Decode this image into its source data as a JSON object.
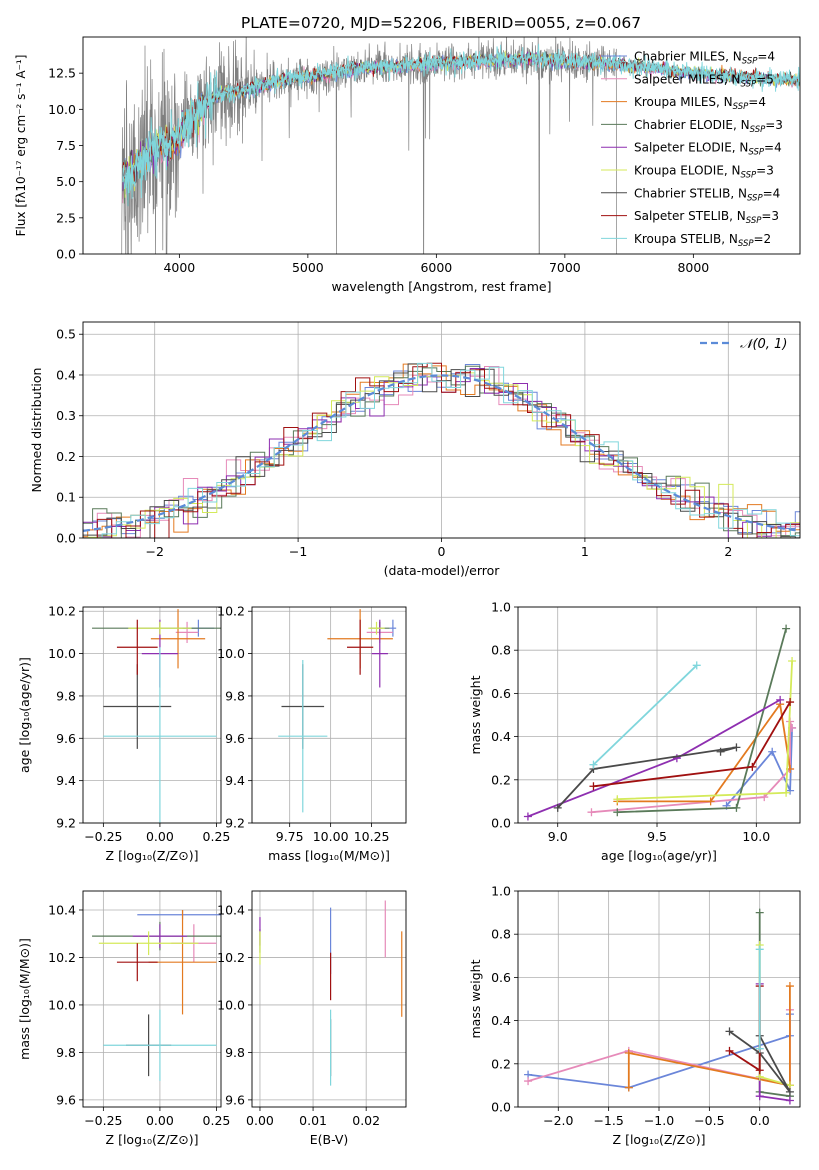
{
  "title": "PLATE=0720, MJD=52206, FIBERID=0055, z=0.067",
  "colors": {
    "chabrier_miles": "#6b86d9",
    "salpeter_miles": "#e68ab9",
    "kroupa_miles": "#e37a20",
    "chabrier_elodie": "#5a7a5a",
    "salpeter_elodie": "#8e2fb0",
    "kroupa_elodie": "#d4ea5a",
    "chabrier_stelib": "#4a4a4a",
    "salpeter_stelib": "#a01010",
    "kroupa_stelib": "#80d6dc",
    "data_gray": "#808080",
    "normal_curve": "#5b8bd8"
  },
  "chart_data": [
    {
      "id": "spectrum",
      "type": "line",
      "title": "PLATE=0720, MJD=52206, FIBERID=0055, z=0.067",
      "xlabel": "wavelength [Angstrom, rest frame]",
      "ylabel": "Flux [fλ10⁻¹⁷ erg cm⁻² s⁻¹ A⁻¹]",
      "xlim": [
        3250,
        8830
      ],
      "ylim": [
        0,
        15
      ],
      "xticks": [
        "4000",
        "5000",
        "6000",
        "7000",
        "8000"
      ],
      "yticks": [
        "0.0",
        "2.5",
        "5.0",
        "7.5",
        "10.0",
        "12.5"
      ],
      "continuum": {
        "x": [
          3550,
          3650,
          3750,
          3850,
          3950,
          4100,
          4300,
          4500,
          4700,
          4900,
          5100,
          5300,
          5500,
          5700,
          5900,
          6100,
          6300,
          6500,
          6700,
          6900,
          7100,
          7300,
          7500,
          7700,
          7900,
          8100,
          8300,
          8500,
          8830
        ],
        "y": [
          5.0,
          5.8,
          7.0,
          7.5,
          7.6,
          9.5,
          11.0,
          11.3,
          11.8,
          12.2,
          12.4,
          12.7,
          12.9,
          13.0,
          13.1,
          13.2,
          13.3,
          13.4,
          13.5,
          13.4,
          13.3,
          13.2,
          13.0,
          12.8,
          12.6,
          12.4,
          12.3,
          12.2,
          12.0
        ]
      },
      "legend": [
        {
          "label": "Chabrier MILES, N",
          "sub": "SSP",
          "suffix": "=4",
          "color": "#6b86d9"
        },
        {
          "label": "Salpeter MILES, N",
          "sub": "SSP",
          "suffix": "=5",
          "color": "#e68ab9"
        },
        {
          "label": "Kroupa MILES, N",
          "sub": "SSP",
          "suffix": "=4",
          "color": "#e37a20"
        },
        {
          "label": "Chabrier ELODIE, N",
          "sub": "SSP",
          "suffix": "=3",
          "color": "#5a7a5a"
        },
        {
          "label": "Salpeter ELODIE, N",
          "sub": "SSP",
          "suffix": "=4",
          "color": "#8e2fb0"
        },
        {
          "label": "Kroupa ELODIE, N",
          "sub": "SSP",
          "suffix": "=3",
          "color": "#d4ea5a"
        },
        {
          "label": "Chabrier STELIB, N",
          "sub": "SSP",
          "suffix": "=4",
          "color": "#4a4a4a"
        },
        {
          "label": "Salpeter STELIB, N",
          "sub": "SSP",
          "suffix": "=3",
          "color": "#a01010"
        },
        {
          "label": "Kroupa STELIB, N",
          "sub": "SSP",
          "suffix": "=2",
          "color": "#80d6dc"
        }
      ],
      "legend_position": "top-right"
    },
    {
      "id": "residuals",
      "type": "line",
      "xlabel": "(data-model)/error",
      "ylabel": "Normed distribution",
      "xlim": [
        -2.5,
        2.5
      ],
      "ylim": [
        0,
        0.53
      ],
      "xticks": [
        "−2",
        "−1",
        "0",
        "1",
        "2"
      ],
      "yticks": [
        "0.0",
        "0.1",
        "0.2",
        "0.3",
        "0.4",
        "0.5"
      ],
      "legend_label": "𝒩(0, 1)",
      "legend_position": "top-right",
      "grid": true
    },
    {
      "id": "age_vs_Z",
      "type": "scatter",
      "xlabel": "Z [log₁₀(Z/Z⊙)]",
      "ylabel": "age  [log₁₀(age/yr)]",
      "xlim": [
        -0.34,
        0.27
      ],
      "ylim": [
        9.2,
        10.22
      ],
      "xticks": [
        "−0.25",
        "0.00",
        "0.25"
      ],
      "yticks": [
        "9.2",
        "9.4",
        "9.6",
        "9.8",
        "10.0",
        "10.2"
      ],
      "grid": true,
      "points": [
        {
          "x": 0.17,
          "y": 10.12,
          "xerr": 0.07,
          "yerr": 0.04,
          "color": "#6b86d9"
        },
        {
          "x": 0.12,
          "y": 10.1,
          "xerr": 0.05,
          "yerr": 0.05,
          "color": "#e68ab9"
        },
        {
          "x": 0.08,
          "y": 10.07,
          "xerr": 0.12,
          "yerr": 0.14,
          "color": "#e37a20"
        },
        {
          "x": 0.0,
          "y": 10.12,
          "xerr": 0.3,
          "yerr": 0.03,
          "color": "#5a7a5a"
        },
        {
          "x": 0.0,
          "y": 10.0,
          "xerr": 0.08,
          "yerr": 0.16,
          "color": "#8e2fb0"
        },
        {
          "x": 0.0,
          "y": 10.12,
          "xerr": 0.14,
          "yerr": 0.03,
          "color": "#d4ea5a"
        },
        {
          "x": -0.1,
          "y": 9.75,
          "xerr": 0.15,
          "yerr": 0.2,
          "color": "#4a4a4a"
        },
        {
          "x": -0.1,
          "y": 10.03,
          "xerr": 0.09,
          "yerr": 0.13,
          "color": "#a01010"
        },
        {
          "x": 0.0,
          "y": 9.61,
          "xerr": 0.25,
          "yerr": 0.42,
          "color": "#80d6dc"
        }
      ]
    },
    {
      "id": "age_vs_mass",
      "type": "scatter",
      "xlabel": "mass [log₁₀(M/M⊙)]",
      "ylabel": "",
      "xlim": [
        9.52,
        10.46
      ],
      "ylim": [
        9.2,
        10.22
      ],
      "xticks": [
        "9.75",
        "10.00",
        "10.25"
      ],
      "yticks": [
        "9.2",
        "9.4",
        "9.6",
        "9.8",
        "10.0",
        "10.2"
      ],
      "grid": true,
      "points": [
        {
          "x": 10.38,
          "y": 10.12,
          "xerr": 0.02,
          "yerr": 0.04,
          "color": "#6b86d9"
        },
        {
          "x": 10.3,
          "y": 10.1,
          "xerr": 0.08,
          "yerr": 0.05,
          "color": "#e68ab9"
        },
        {
          "x": 10.18,
          "y": 10.07,
          "xerr": 0.2,
          "yerr": 0.14,
          "color": "#e37a20"
        },
        {
          "x": 10.3,
          "y": 10.12,
          "xerr": 0.06,
          "yerr": 0.03,
          "color": "#5a7a5a"
        },
        {
          "x": 10.3,
          "y": 10.0,
          "xerr": 0.05,
          "yerr": 0.16,
          "color": "#8e2fb0"
        },
        {
          "x": 10.28,
          "y": 10.12,
          "xerr": 0.05,
          "yerr": 0.03,
          "color": "#d4ea5a"
        },
        {
          "x": 9.83,
          "y": 9.75,
          "xerr": 0.13,
          "yerr": 0.2,
          "color": "#4a4a4a"
        },
        {
          "x": 10.18,
          "y": 10.03,
          "xerr": 0.08,
          "yerr": 0.13,
          "color": "#a01010"
        },
        {
          "x": 9.83,
          "y": 9.61,
          "xerr": 0.15,
          "yerr": 0.36,
          "color": "#80d6dc"
        }
      ]
    },
    {
      "id": "weight_vs_age",
      "type": "line",
      "xlabel": "age  [log₁₀(age/yr)]",
      "ylabel": "mass weight",
      "xlim": [
        8.8,
        10.22
      ],
      "ylim": [
        0,
        1.0
      ],
      "xticks": [
        "9.0",
        "9.5",
        "10.0"
      ],
      "yticks": [
        "0.0",
        "0.2",
        "0.4",
        "0.6",
        "0.8",
        "1.0"
      ],
      "grid": true,
      "series": [
        {
          "color": "#6b86d9",
          "x": [
            9.85,
            10.08,
            10.17,
            10.18
          ],
          "y": [
            0.08,
            0.33,
            0.15,
            0.44
          ]
        },
        {
          "color": "#e68ab9",
          "x": [
            9.17,
            10.04,
            10.17,
            10.17,
            10.18
          ],
          "y": [
            0.05,
            0.12,
            0.25,
            0.47,
            0.44
          ]
        },
        {
          "color": "#e37a20",
          "x": [
            9.3,
            9.77,
            10.12,
            10.17
          ],
          "y": [
            0.1,
            0.1,
            0.55,
            0.25
          ]
        },
        {
          "color": "#5a7a5a",
          "x": [
            9.3,
            9.9,
            10.15
          ],
          "y": [
            0.05,
            0.07,
            0.9
          ]
        },
        {
          "color": "#8e2fb0",
          "x": [
            8.85,
            9.6,
            10.12
          ],
          "y": [
            0.03,
            0.3,
            0.57
          ]
        },
        {
          "color": "#d4ea5a",
          "x": [
            9.3,
            10.15,
            10.18
          ],
          "y": [
            0.11,
            0.14,
            0.75
          ]
        },
        {
          "color": "#4a4a4a",
          "x": [
            9.0,
            9.18,
            9.9,
            9.82
          ],
          "y": [
            0.07,
            0.25,
            0.35,
            0.33
          ]
        },
        {
          "color": "#a01010",
          "x": [
            9.18,
            9.98,
            10.17
          ],
          "y": [
            0.17,
            0.26,
            0.56
          ]
        },
        {
          "color": "#80d6dc",
          "x": [
            9.18,
            9.7
          ],
          "y": [
            0.27,
            0.73
          ]
        }
      ]
    },
    {
      "id": "mass_vs_Z",
      "type": "scatter",
      "xlabel": "Z [log₁₀(Z/Z⊙)]",
      "ylabel": "mass [log₁₀(M/M⊙)]",
      "xlim": [
        -0.34,
        0.27
      ],
      "ylim": [
        9.57,
        10.48
      ],
      "xticks": [
        "−0.25",
        "0.00",
        "0.25"
      ],
      "yticks": [
        "9.6",
        "9.8",
        "10.0",
        "10.2",
        "10.4"
      ],
      "grid": true,
      "points": [
        {
          "x": 0.1,
          "y": 10.38,
          "xerr": 0.2,
          "yerr": 0.02,
          "color": "#6b86d9"
        },
        {
          "x": 0.15,
          "y": 10.26,
          "xerr": 0.1,
          "yerr": 0.08,
          "color": "#e68ab9"
        },
        {
          "x": 0.1,
          "y": 10.18,
          "xerr": 0.15,
          "yerr": 0.22,
          "color": "#e37a20"
        },
        {
          "x": 0.0,
          "y": 10.29,
          "xerr": 0.3,
          "yerr": 0.06,
          "color": "#5a7a5a"
        },
        {
          "x": 0.0,
          "y": 10.29,
          "xerr": 0.12,
          "yerr": 0.05,
          "color": "#8e2fb0"
        },
        {
          "x": -0.05,
          "y": 10.26,
          "xerr": 0.22,
          "yerr": 0.05,
          "color": "#d4ea5a"
        },
        {
          "x": -0.05,
          "y": 9.83,
          "xerr": 0.1,
          "yerr": 0.13,
          "color": "#4a4a4a"
        },
        {
          "x": -0.1,
          "y": 10.18,
          "xerr": 0.09,
          "yerr": 0.08,
          "color": "#a01010"
        },
        {
          "x": 0.0,
          "y": 9.83,
          "xerr": 0.25,
          "yerr": 0.15,
          "color": "#80d6dc"
        }
      ]
    },
    {
      "id": "mass_vs_ebv",
      "type": "scatter",
      "xlabel": "E(B-V)",
      "ylabel": "",
      "xlim": [
        -0.0015,
        0.0275
      ],
      "ylim": [
        9.57,
        10.48
      ],
      "xticks": [
        "0.00",
        "0.01",
        "0.02"
      ],
      "yticks": [
        "9.6",
        "9.8",
        "10.0",
        "10.2",
        "10.4"
      ],
      "grid": true,
      "points": [
        {
          "x": 0.0133,
          "y": 10.27,
          "xerr": 0,
          "yerr": 0.14,
          "color": "#6b86d9"
        },
        {
          "x": 0.0236,
          "y": 10.32,
          "xerr": 0,
          "yerr": 0.12,
          "color": "#e68ab9"
        },
        {
          "x": 0.0267,
          "y": 10.13,
          "xerr": 0,
          "yerr": 0.18,
          "color": "#e37a20"
        },
        {
          "x": 0.0,
          "y": 10.27,
          "xerr": 0,
          "yerr": 0.05,
          "color": "#5a7a5a"
        },
        {
          "x": 0.0,
          "y": 10.31,
          "xerr": 0,
          "yerr": 0.06,
          "color": "#8e2fb0"
        },
        {
          "x": 0.0,
          "y": 10.24,
          "xerr": 0,
          "yerr": 0.07,
          "color": "#d4ea5a"
        },
        {
          "x": 0.0133,
          "y": 9.82,
          "xerr": 0,
          "yerr": 0.12,
          "color": "#4a4a4a"
        },
        {
          "x": 0.0133,
          "y": 10.12,
          "xerr": 0,
          "yerr": 0.1,
          "color": "#a01010"
        },
        {
          "x": 0.0133,
          "y": 9.82,
          "xerr": 0,
          "yerr": 0.16,
          "color": "#80d6dc"
        }
      ]
    },
    {
      "id": "weight_vs_Z",
      "type": "line",
      "xlabel": "Z [log₁₀(Z/Z⊙)]",
      "ylabel": "mass weight",
      "xlim": [
        -2.4,
        0.4
      ],
      "ylim": [
        0,
        1.0
      ],
      "xticks": [
        "−2.0",
        "−1.5",
        "−1.0",
        "−0.5",
        "0.0"
      ],
      "yticks": [
        "0.0",
        "0.2",
        "0.4",
        "0.6",
        "0.8",
        "1.0"
      ],
      "grid": true,
      "series": [
        {
          "color": "#6b86d9",
          "x": [
            -2.3,
            -1.3,
            0.3,
            0.3
          ],
          "y": [
            0.15,
            0.09,
            0.33,
            0.43
          ]
        },
        {
          "color": "#e68ab9",
          "x": [
            -2.3,
            -1.3,
            0.3,
            0.3
          ],
          "y": [
            0.12,
            0.26,
            0.1,
            0.45
          ]
        },
        {
          "color": "#e37a20",
          "x": [
            -1.3,
            -1.3,
            0.3,
            0.3
          ],
          "y": [
            0.09,
            0.25,
            0.1,
            0.56
          ]
        },
        {
          "color": "#5a7a5a",
          "x": [
            0.0,
            0.0,
            0.3
          ],
          "y": [
            0.9,
            0.07,
            0.05
          ]
        },
        {
          "color": "#8e2fb0",
          "x": [
            0.0,
            0.0,
            0.3
          ],
          "y": [
            0.57,
            0.05,
            0.03
          ]
        },
        {
          "color": "#d4ea5a",
          "x": [
            0.0,
            0.0,
            0.3
          ],
          "y": [
            0.75,
            0.14,
            0.1
          ]
        },
        {
          "color": "#4a4a4a",
          "x": [
            -0.3,
            0.0,
            0.3,
            0.0
          ],
          "y": [
            0.35,
            0.25,
            0.07,
            0.33
          ]
        },
        {
          "color": "#a01010",
          "x": [
            -0.3,
            0.0,
            0.0
          ],
          "y": [
            0.26,
            0.17,
            0.56
          ]
        },
        {
          "color": "#80d6dc",
          "x": [
            0.0,
            0.0
          ],
          "y": [
            0.27,
            0.73
          ]
        }
      ]
    }
  ]
}
